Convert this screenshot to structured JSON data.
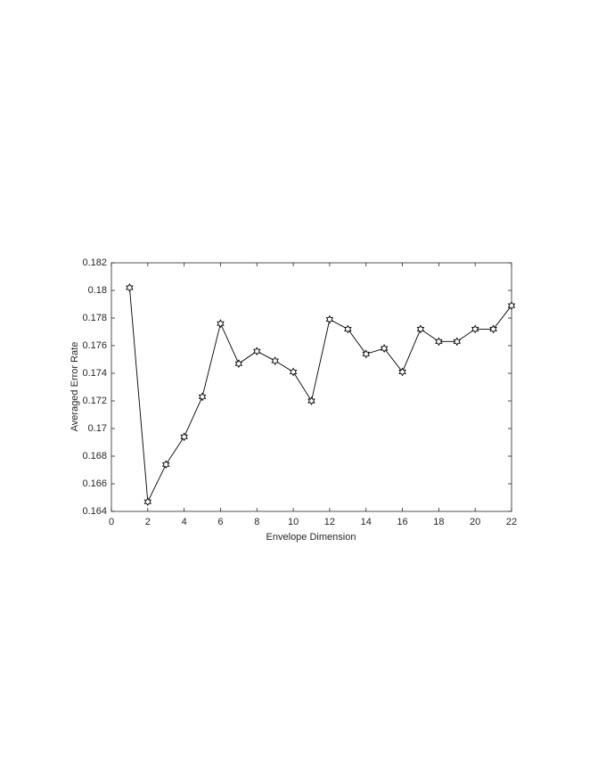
{
  "chart_data": {
    "type": "line",
    "xlabel": "Envelope Dimension",
    "ylabel": "Averaged Error Rate",
    "x": [
      1,
      2,
      3,
      4,
      5,
      6,
      7,
      8,
      9,
      10,
      11,
      12,
      13,
      14,
      15,
      16,
      17,
      18,
      19,
      20,
      21,
      22
    ],
    "series": [
      {
        "color": "#000000",
        "values": [
          0.1802,
          0.1647,
          0.1674,
          0.1694,
          0.1723,
          0.1776,
          0.1747,
          0.1756,
          0.1749,
          0.1741,
          0.172,
          0.1779,
          0.1772,
          0.1754,
          0.1758,
          0.1741,
          0.1772,
          0.1763,
          0.1763,
          0.1772,
          0.1772,
          0.1789
        ]
      }
    ],
    "xlim": [
      0,
      22
    ],
    "xticks": [
      0,
      2,
      4,
      6,
      8,
      10,
      12,
      14,
      16,
      18,
      20,
      22
    ],
    "ylim": [
      0.164,
      0.182
    ],
    "yticks": [
      0.164,
      0.166,
      0.168,
      0.17,
      0.172,
      0.174,
      0.176,
      0.178,
      0.18,
      0.182
    ],
    "grid": false
  }
}
